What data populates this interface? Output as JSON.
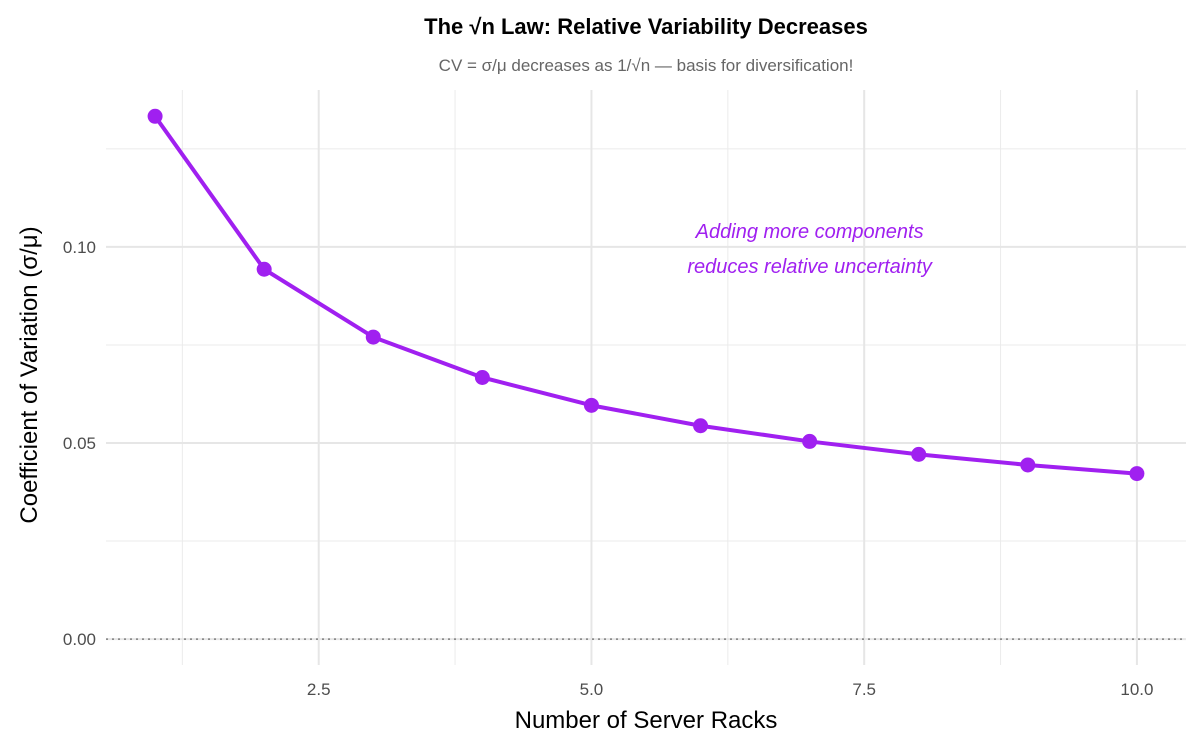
{
  "chart_data": {
    "type": "line",
    "title": "The √n Law: Relative Variability Decreases",
    "subtitle": "CV = σ/μ decreases as 1/√n — basis for diversification!",
    "xlabel": "Number of Server Racks",
    "ylabel": "Coefficient of Variation (σ/μ)",
    "x": [
      1,
      2,
      3,
      4,
      5,
      6,
      7,
      8,
      9,
      10
    ],
    "series": [
      {
        "name": "CV",
        "values": [
          0.1333,
          0.0943,
          0.077,
          0.0667,
          0.0596,
          0.0544,
          0.0504,
          0.0471,
          0.0444,
          0.0422
        ],
        "color": "#A020F0"
      }
    ],
    "xlim": [
      0.55,
      10.45
    ],
    "ylim": [
      -0.0066,
      0.14
    ],
    "x_ticks": [
      2.5,
      5.0,
      7.5,
      10.0
    ],
    "x_tick_labels": [
      "2.5",
      "5.0",
      "7.5",
      "10.0"
    ],
    "y_ticks": [
      0.0,
      0.05,
      0.1
    ],
    "y_tick_labels": [
      "0.00",
      "0.05",
      "0.10"
    ],
    "grid": true,
    "reference_line": {
      "y": 0,
      "style": "dotted",
      "color": "#808080"
    },
    "annotation": {
      "lines": [
        "Adding more components",
        "reduces relative uncertainty"
      ],
      "x": 7.0,
      "y": 0.1,
      "color": "#A020F0"
    }
  }
}
